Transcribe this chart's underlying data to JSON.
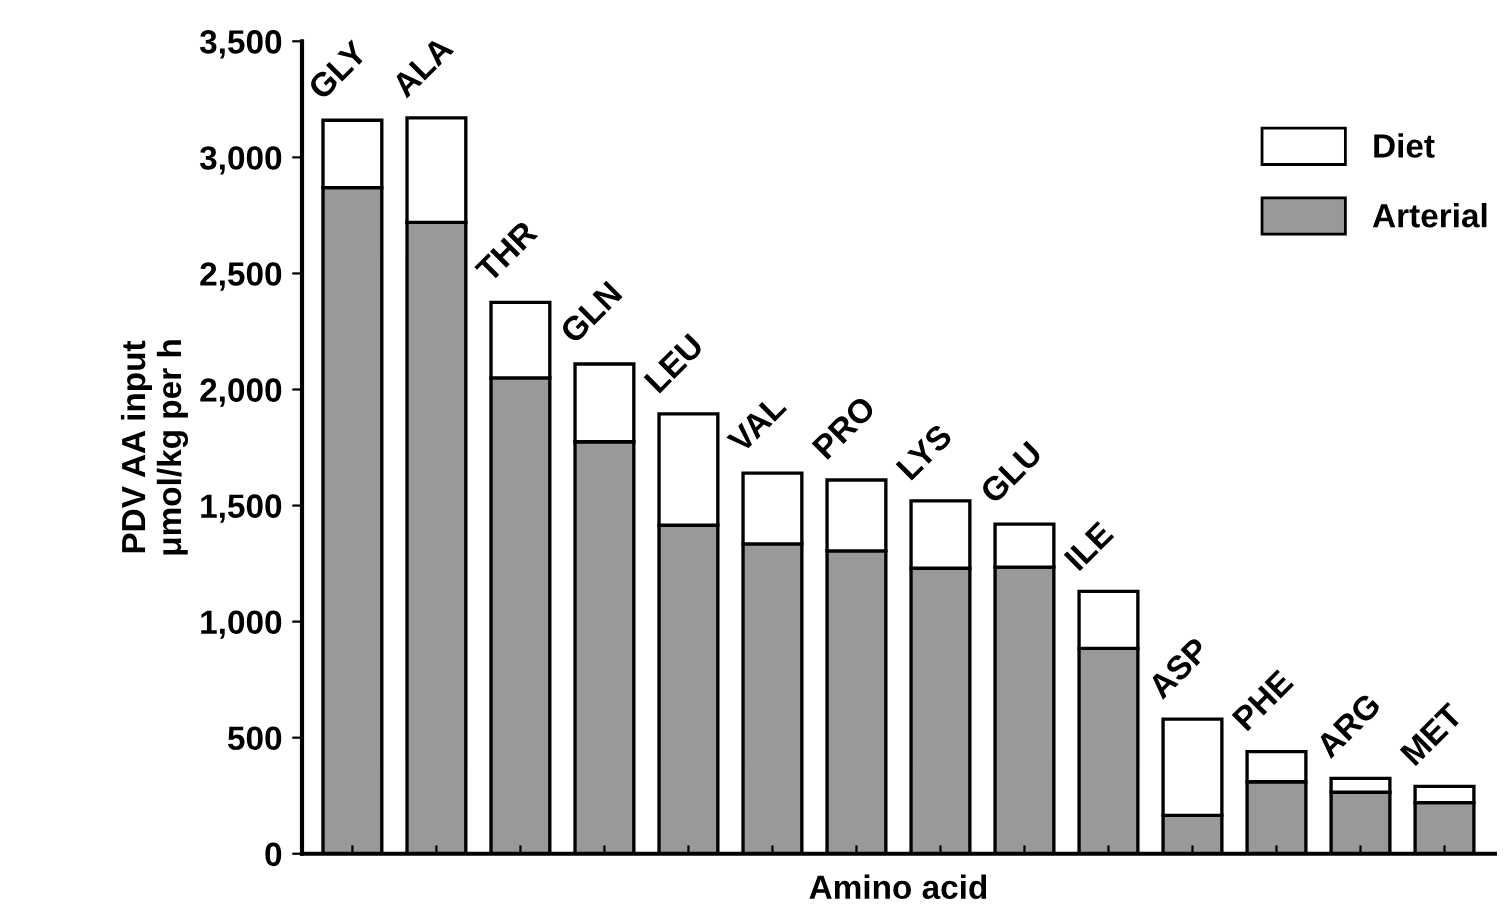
{
  "chart_data": {
    "type": "bar",
    "stacked": true,
    "xlabel": "Amino acid",
    "ylabel": "PDV AA input\nμmol/kg per h",
    "categories": [
      "GLY",
      "ALA",
      "THR",
      "GLN",
      "LEU",
      "VAL",
      "PRO",
      "LYS",
      "GLU",
      "ILE",
      "ASP",
      "PHE",
      "ARG",
      "MET"
    ],
    "series": [
      {
        "name": "Arterial",
        "color": "#999999",
        "values": [
          2870,
          2720,
          2050,
          1775,
          1415,
          1335,
          1305,
          1230,
          1235,
          885,
          165,
          310,
          265,
          220
        ]
      },
      {
        "name": "Diet",
        "color": "#ffffff",
        "values": [
          290,
          450,
          325,
          335,
          480,
          305,
          305,
          290,
          185,
          245,
          415,
          130,
          60,
          70
        ]
      }
    ],
    "ylim": [
      0,
      3500
    ],
    "yticks": [
      {
        "value": 0,
        "label": "0"
      },
      {
        "value": 500,
        "label": "500"
      },
      {
        "value": 1000,
        "label": "1,000"
      },
      {
        "value": 1500,
        "label": "1,500"
      },
      {
        "value": 2000,
        "label": "2,000"
      },
      {
        "value": 2500,
        "label": "2,500"
      },
      {
        "value": 3000,
        "label": "3,000"
      },
      {
        "value": 3500,
        "label": "3,500"
      }
    ],
    "grid": false,
    "legend": "top right"
  }
}
